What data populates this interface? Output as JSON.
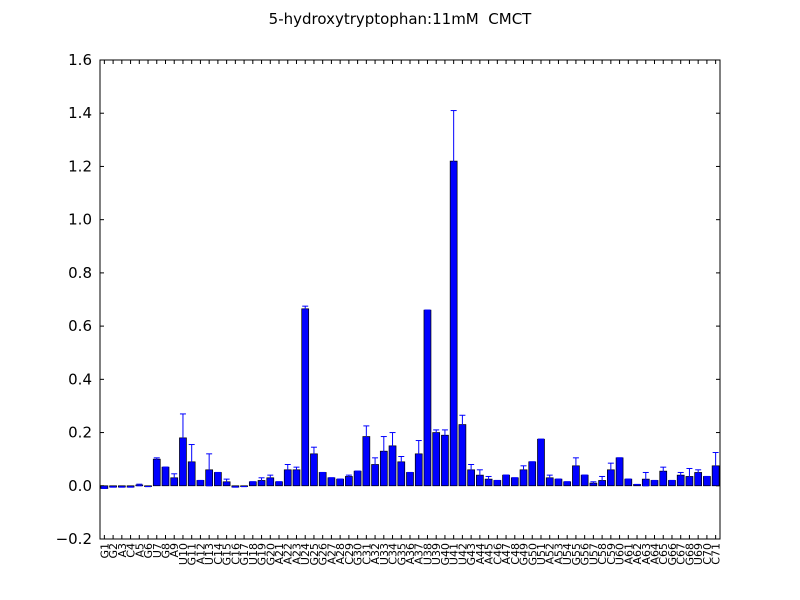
{
  "chart_data": {
    "type": "bar",
    "title": "5-hydroxytryptophan:11mM  CMCT",
    "categories": [
      "G1",
      "G2",
      "A3",
      "C4",
      "A5",
      "G6",
      "U7",
      "G8",
      "A9",
      "U10",
      "G11",
      "A12",
      "U13",
      "C14",
      "G15",
      "C16",
      "G17",
      "U18",
      "G19",
      "G20",
      "A21",
      "A22",
      "A23",
      "U24",
      "G25",
      "G26",
      "A27",
      "A28",
      "C29",
      "G30",
      "C31",
      "A32",
      "U33",
      "C34",
      "G35",
      "A36",
      "A37",
      "U38",
      "U39",
      "G40",
      "U41",
      "U42",
      "G43",
      "A44",
      "A45",
      "C46",
      "A47",
      "C48",
      "G49",
      "G50",
      "U51",
      "A52",
      "A53",
      "U54",
      "G55",
      "G56",
      "U57",
      "C58",
      "C59",
      "U60",
      "A61",
      "A62",
      "A63",
      "A64",
      "C65",
      "G66",
      "C67",
      "G68",
      "U69",
      "C70",
      "C71"
    ],
    "values": [
      -0.01,
      -0.005,
      -0.005,
      -0.005,
      0.003,
      -0.003,
      0.1,
      0.07,
      0.03,
      0.18,
      0.09,
      0.02,
      0.06,
      0.05,
      0.015,
      -0.005,
      -0.003,
      0.015,
      0.02,
      0.03,
      0.015,
      0.06,
      0.06,
      0.665,
      0.12,
      0.05,
      0.03,
      0.025,
      0.035,
      0.055,
      0.185,
      0.08,
      0.13,
      0.15,
      0.09,
      0.05,
      0.12,
      0.66,
      0.2,
      0.19,
      1.22,
      0.23,
      0.06,
      0.04,
      0.025,
      0.02,
      0.04,
      0.03,
      0.06,
      0.09,
      0.175,
      0.03,
      0.025,
      0.015,
      0.075,
      0.04,
      0.01,
      0.02,
      0.06,
      0.105,
      0.025,
      0.005,
      0.025,
      0.02,
      0.055,
      0.02,
      0.04,
      0.035,
      0.05,
      0.035,
      0.075
    ],
    "errors": [
      0,
      0,
      0,
      0,
      0.003,
      0,
      0.005,
      0,
      0.015,
      0.09,
      0.065,
      0,
      0.06,
      0,
      0.01,
      0,
      0,
      0,
      0.01,
      0.01,
      0,
      0.02,
      0.01,
      0.01,
      0.025,
      0,
      0,
      0,
      0.005,
      0,
      0.04,
      0.025,
      0.055,
      0.05,
      0.02,
      0,
      0.05,
      0,
      0.01,
      0.02,
      0.19,
      0.035,
      0.02,
      0.02,
      0.01,
      0,
      0,
      0,
      0.015,
      0,
      0,
      0.01,
      0,
      0,
      0.03,
      0,
      0.005,
      0.015,
      0.025,
      0,
      0,
      0,
      0.025,
      0,
      0.015,
      0,
      0.01,
      0.03,
      0.01,
      0,
      0.05
    ],
    "color": "#0000ff",
    "error_color": "#0000ff",
    "ylim": [
      -0.2,
      1.6
    ],
    "yticks": [
      {
        "value": -0.2,
        "label": "−0.2"
      },
      {
        "value": 0,
        "label": "0.0"
      },
      0.2,
      0.4,
      0.6,
      0.8,
      {
        "value": 1,
        "label": "1.0"
      },
      1.2,
      1.4,
      1.6
    ]
  }
}
